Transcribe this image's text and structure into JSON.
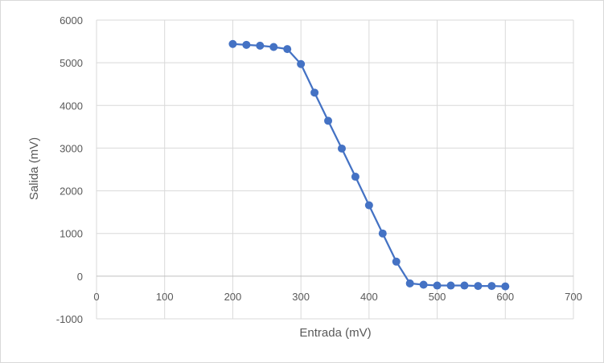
{
  "chart_data": {
    "type": "scatter",
    "title": "",
    "xlabel": "Entrada (mV)",
    "ylabel": "Salida (mV)",
    "xlim": [
      0,
      700
    ],
    "ylim": [
      -1000,
      6000
    ],
    "x_ticks": [
      0,
      100,
      200,
      300,
      400,
      500,
      600,
      700
    ],
    "y_ticks": [
      -1000,
      0,
      1000,
      2000,
      3000,
      4000,
      5000,
      6000
    ],
    "grid": true,
    "legend": "none",
    "series_color": "#4472c4",
    "series": [
      {
        "x": [
          200,
          220,
          240,
          260,
          280,
          300,
          320,
          340,
          360,
          380,
          400,
          420,
          440,
          460,
          480,
          500,
          520,
          540,
          560,
          580,
          600
        ],
        "y": [
          5440,
          5420,
          5400,
          5370,
          5320,
          4970,
          4300,
          3640,
          2990,
          2330,
          1660,
          1000,
          340,
          -170,
          -200,
          -220,
          -220,
          -220,
          -230,
          -230,
          -240
        ]
      }
    ]
  }
}
